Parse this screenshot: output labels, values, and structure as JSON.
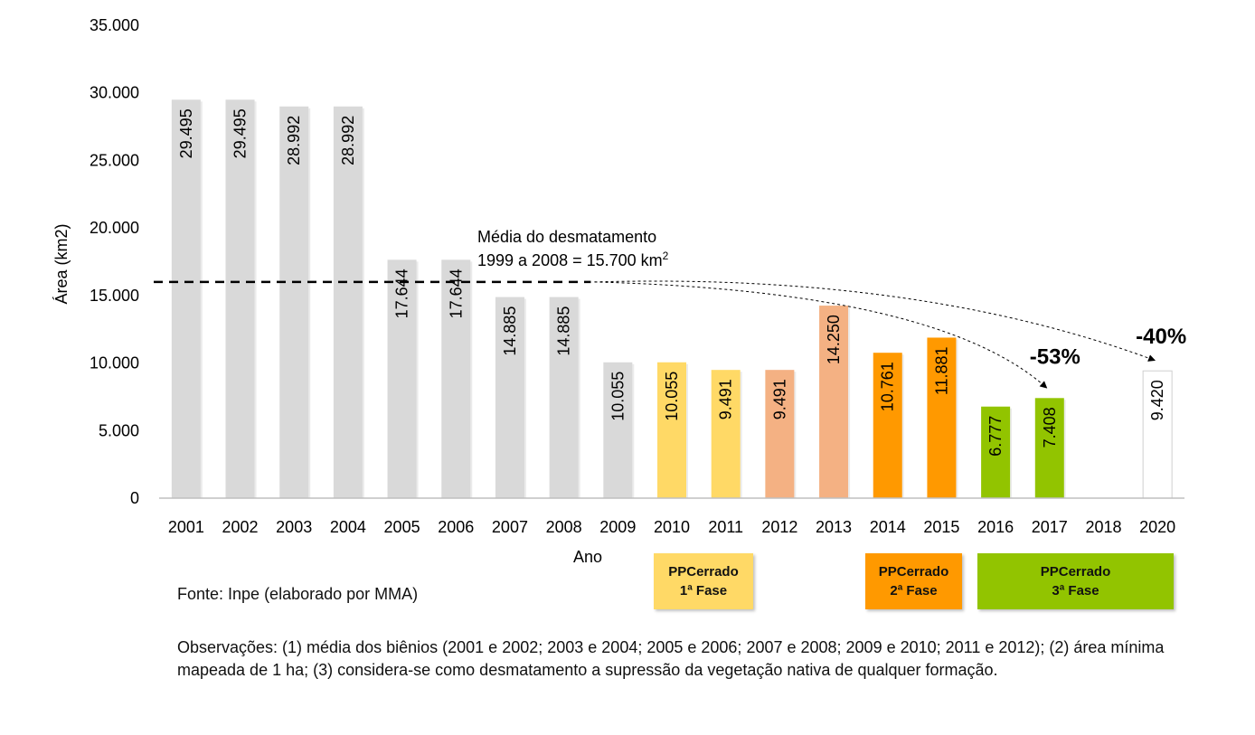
{
  "chart_data": {
    "type": "bar",
    "ylabel": "Área (km2)",
    "xlabel": "Ano",
    "ylim": [
      0,
      35000
    ],
    "yticks": [
      "0",
      "5.000",
      "10.000",
      "15.000",
      "20.000",
      "25.000",
      "30.000",
      "35.000"
    ],
    "categories": [
      "2001",
      "2002",
      "2003",
      "2004",
      "2005",
      "2006",
      "2007",
      "2008",
      "2009",
      "2010",
      "2011",
      "2012",
      "2013",
      "2014",
      "2015",
      "2016",
      "2017",
      "2018",
      "2020"
    ],
    "values": [
      29495,
      29495,
      28992,
      28992,
      17644,
      17644,
      14885,
      14885,
      10055,
      10055,
      9491,
      9491,
      14250,
      10761,
      11881,
      6777,
      7408,
      null,
      9420
    ],
    "value_labels": [
      "29.495",
      "29.495",
      "28.992",
      "28.992",
      "17.644",
      "17.644",
      "14.885",
      "14.885",
      "10.055",
      "10.055",
      "9.491",
      "9.491",
      "14.250",
      "10.761",
      "11.881",
      "6.777",
      "7.408",
      "",
      "9.420"
    ],
    "bar_colors": [
      "#d9d9d9",
      "#d9d9d9",
      "#d9d9d9",
      "#d9d9d9",
      "#d9d9d9",
      "#d9d9d9",
      "#d9d9d9",
      "#d9d9d9",
      "#d9d9d9",
      "#ffd966",
      "#ffd966",
      "#f4b183",
      "#f4b183",
      "#ff9900",
      "#ff9900",
      "#92c400",
      "#92c400",
      "#ffffff",
      "#ffffff"
    ],
    "average_line": {
      "value": 16000,
      "label_line1": "Média do desmatamento",
      "label_line2_prefix": "1999 a 2008 = 15.700 km",
      "label_line2_sup": "2"
    },
    "annotations": [
      {
        "text": "-53%",
        "target_category": "2017"
      },
      {
        "text": "-40%",
        "target_category": "2020"
      }
    ]
  },
  "phases": [
    {
      "line1": "PPCerrado",
      "line2": "1ª Fase",
      "color": "#ffd966"
    },
    {
      "line1": "PPCerrado",
      "line2": "2ª Fase",
      "color": "#ff9900"
    },
    {
      "line1": "PPCerrado",
      "line2": "3ª Fase",
      "color": "#92c400"
    }
  ],
  "source": "Fonte: Inpe (elaborado por MMA)",
  "notes": "Observações: (1) média dos biênios (2001 e 2002; 2003 e 2004; 2005 e 2006; 2007 e 2008; 2009 e 2010; 2011 e 2012); (2) área mínima mapeada de 1 ha; (3) considera-se como desmatamento a supressão da vegetação nativa de qualquer formação."
}
